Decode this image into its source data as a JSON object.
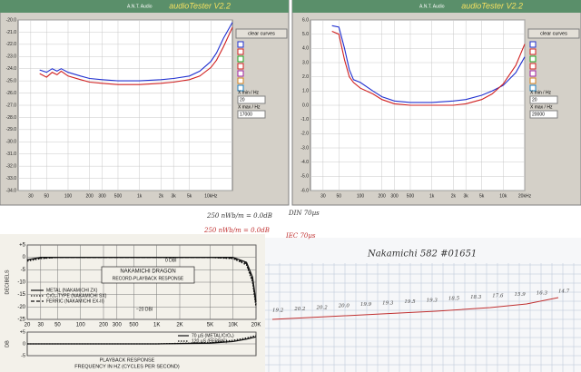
{
  "chart_data": [
    {
      "type": "line",
      "window_title": "audioTester V2.2",
      "vendor": "A.N.T. Audio",
      "button": "clear curves",
      "xmin_label": "X min / Hz",
      "xmin": "20",
      "xmax_label": "X max / Hz",
      "xmax": "17000",
      "log_x": true,
      "grid": true,
      "xlim": [
        20,
        20000
      ],
      "ylim": [
        -34,
        -20
      ],
      "xticks": [
        30,
        50,
        100,
        200,
        300,
        500,
        {
          "value": 1000,
          "label": "1k"
        },
        {
          "value": 2000,
          "label": "2k"
        },
        {
          "value": 3000,
          "label": "3k"
        },
        {
          "value": 5000,
          "label": "5k"
        },
        {
          "value": 10000,
          "label": "10kHz"
        }
      ],
      "yticks": [
        {
          "value": -20,
          "label": "-20.0"
        },
        {
          "value": -21,
          "label": "-21.0"
        },
        {
          "value": -22,
          "label": "-22.0"
        },
        {
          "value": -23,
          "label": "-23.0"
        },
        {
          "value": -24,
          "label": "-24.0"
        },
        {
          "value": -25,
          "label": "-25.0"
        },
        {
          "value": -26,
          "label": "-26.0"
        },
        {
          "value": -27,
          "label": "-27.0"
        },
        {
          "value": -28,
          "label": "-28.0"
        },
        {
          "value": -29,
          "label": "-29.0"
        },
        {
          "value": -30,
          "label": "-30.0"
        },
        {
          "value": -31,
          "label": "-31.0"
        },
        {
          "value": -32,
          "label": "-32.0"
        },
        {
          "value": -33,
          "label": "-33.0"
        },
        {
          "value": -34,
          "label": "-34.0"
        }
      ],
      "x": [
        40,
        50,
        60,
        70,
        80,
        100,
        150,
        200,
        300,
        500,
        1000,
        2000,
        3000,
        5000,
        7000,
        10000,
        12000,
        15000,
        20000
      ],
      "series": [
        {
          "color": "#2030d0",
          "values": [
            -24.1,
            -24.3,
            -24.0,
            -24.2,
            -24.0,
            -24.3,
            -24.6,
            -24.8,
            -24.9,
            -25.0,
            -25.0,
            -24.9,
            -24.8,
            -24.6,
            -24.2,
            -23.4,
            -22.7,
            -21.5,
            -20.2
          ]
        },
        {
          "color": "#d02020",
          "values": [
            -24.4,
            -24.7,
            -24.3,
            -24.5,
            -24.2,
            -24.6,
            -24.9,
            -25.1,
            -25.2,
            -25.3,
            -25.3,
            -25.2,
            -25.1,
            -24.9,
            -24.6,
            -23.9,
            -23.3,
            -22.2,
            -20.6
          ]
        }
      ]
    },
    {
      "type": "line",
      "window_title": "audioTester V2.2",
      "vendor": "A.N.T. Audio",
      "button": "clear curves",
      "xmin_label": "X min / Hz",
      "xmin": "20",
      "xmax_label": "X max / Hz",
      "xmax": "20000",
      "log_x": true,
      "grid": true,
      "xlim": [
        20,
        20000
      ],
      "ylim": [
        -6,
        6
      ],
      "xticks": [
        30,
        50,
        100,
        200,
        300,
        500,
        {
          "value": 1000,
          "label": "1k"
        },
        {
          "value": 2000,
          "label": "2k"
        },
        {
          "value": 3000,
          "label": "3k"
        },
        {
          "value": 5000,
          "label": "5k"
        },
        {
          "value": 10000,
          "label": "10k"
        },
        {
          "value": 20000,
          "label": "20kHz"
        }
      ],
      "yticks": [
        {
          "value": 6,
          "label": "6.0"
        },
        {
          "value": 5,
          "label": "5.0"
        },
        {
          "value": 4,
          "label": "4.0"
        },
        {
          "value": 3,
          "label": "3.0"
        },
        {
          "value": 2,
          "label": "2.0"
        },
        {
          "value": 1,
          "label": "1.0"
        },
        {
          "value": 0,
          "label": "0.0"
        },
        {
          "value": -1,
          "label": "-1.0"
        },
        {
          "value": -2,
          "label": "-2.0"
        },
        {
          "value": -3,
          "label": "-3.0"
        },
        {
          "value": -4,
          "label": "-4.0"
        },
        {
          "value": -5,
          "label": "-5.0"
        },
        {
          "value": -6,
          "label": "-6.0"
        }
      ],
      "x": [
        40,
        50,
        60,
        70,
        80,
        100,
        150,
        200,
        300,
        500,
        1000,
        2000,
        3000,
        5000,
        7000,
        10000,
        15000,
        20000
      ],
      "series": [
        {
          "color": "#2030d0",
          "values": [
            5.6,
            5.5,
            4.0,
            2.5,
            1.8,
            1.6,
            1.0,
            0.6,
            0.3,
            0.2,
            0.2,
            0.3,
            0.4,
            0.7,
            1.0,
            1.4,
            2.3,
            3.4
          ]
        },
        {
          "color": "#d02020",
          "values": [
            5.2,
            5.0,
            3.2,
            2.0,
            1.6,
            1.2,
            0.8,
            0.4,
            0.1,
            0.0,
            0.0,
            0.0,
            0.1,
            0.4,
            0.8,
            1.5,
            2.8,
            4.3
          ]
        }
      ]
    },
    {
      "type": "line",
      "title": "NAKAMICHI DRAGON",
      "subtitle": "RECORD-PLAYBACK RESPONSE",
      "y_label": "DECIBELS",
      "annotations": [
        "0 DBI",
        "−20 DBI"
      ],
      "log_x": true,
      "grid": true,
      "xlim": [
        20,
        20000
      ],
      "ylim": [
        -25,
        5
      ],
      "xticks": [
        20,
        30,
        50,
        100,
        200,
        300,
        500,
        {
          "value": 1000,
          "label": "1K"
        },
        {
          "value": 2000,
          "label": "2K"
        },
        {
          "value": 5000,
          "label": "5K"
        },
        {
          "value": 10000,
          "label": "10K"
        },
        {
          "value": 20000,
          "label": "20K"
        }
      ],
      "yticks": [
        {
          "value": 5,
          "label": "+5"
        },
        0,
        -5,
        -10,
        -15,
        -20,
        -25
      ],
      "x": [
        20,
        30,
        50,
        100,
        500,
        1000,
        5000,
        10000,
        15000,
        18000,
        20000
      ],
      "series": [
        {
          "name": "METAL (NAKAMICHI ZX)",
          "color": "#111111",
          "dash": "solid",
          "values": [
            -1,
            0,
            0,
            0,
            0,
            0,
            0,
            0,
            -2,
            -8,
            -18
          ]
        },
        {
          "name": "CrO₂-TYPE (NAKAMICHI SX)",
          "color": "#111111",
          "dash": "dotted",
          "values": [
            -1.5,
            -0.5,
            0,
            0,
            0,
            0,
            0,
            -0.5,
            -3,
            -10,
            -20
          ]
        },
        {
          "name": "FERRIC (NAKAMICHI EX-II)",
          "color": "#111111",
          "dash": "dashed",
          "values": [
            -1,
            -0.3,
            0,
            0,
            0,
            0,
            0,
            -0.3,
            -2.5,
            -9,
            -19
          ]
        }
      ]
    },
    {
      "type": "line",
      "title": "PLAYBACK RESPONSE",
      "y_label": "DB",
      "x_label": "FREQUENCY IN HZ (CYCLES PER SECOND)",
      "log_x": true,
      "grid": true,
      "xlim": [
        20,
        20000
      ],
      "ylim": [
        -5,
        5
      ],
      "yticks": [
        {
          "value": 5,
          "label": "+5"
        },
        0,
        -5
      ],
      "x": [
        20,
        50,
        100,
        1000,
        5000,
        10000,
        15000,
        20000
      ],
      "series": [
        {
          "name": "70 µS (METAL/CrO₂)",
          "color": "#111111",
          "dash": "solid",
          "values": [
            0,
            0,
            0,
            0,
            0.3,
            1,
            2,
            3
          ]
        },
        {
          "name": "120 µS (FERRIC)",
          "color": "#111111",
          "dash": "dotted",
          "values": [
            0,
            0,
            0,
            0,
            0.5,
            1.5,
            2.5,
            3.5
          ]
        }
      ]
    }
  ],
  "notes": {
    "lines": [
      "250 nWb/m = 0.0dB",
      "DIN 70µs",
      "250 nWb/m = 0.0dB",
      "IEC 70µs"
    ]
  },
  "paper_chart": {
    "title": "Nakamichi 582 #01651",
    "readings": [
      "19.2",
      "20.2",
      "20.2",
      "20.0",
      "19.9",
      "19.3",
      "19.5",
      "19.3",
      "18.5",
      "18.3",
      "17.6",
      "15.9",
      "16.3",
      "14.7"
    ]
  }
}
